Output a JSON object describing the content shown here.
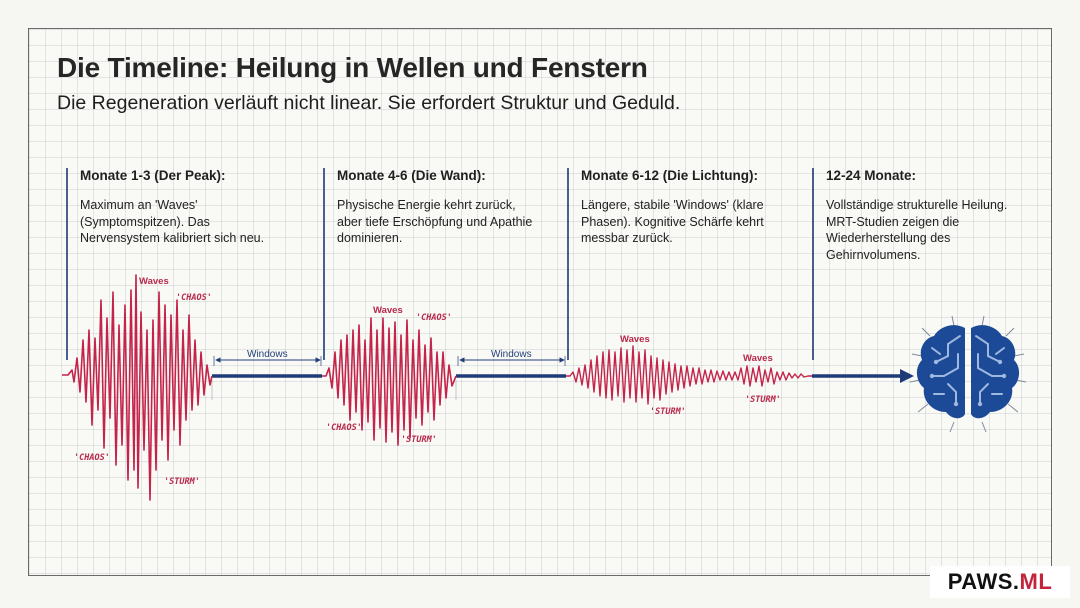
{
  "header": {
    "title": "Die Timeline: Heilung in Wellen und Fenstern",
    "subtitle": "Die Regeneration verläuft nicht linear. Sie erfordert Struktur und Geduld."
  },
  "phases": [
    {
      "heading": "Monate 1-3 (Der Peak):",
      "text": "Maximum an 'Waves' (Symptomspitzen). Das Nervensystem kalibriert sich neu."
    },
    {
      "heading": "Monate 4-6 (Die Wand):",
      "text": "Physische Energie kehrt zurück, aber tiefe Erschöpfung und Apathie dominieren."
    },
    {
      "heading": "Monate 6-12 (Die Lichtung):",
      "text": "Längere, stabile 'Windows' (klare Phasen). Kognitive Schärfe kehrt messbar zurück."
    },
    {
      "heading": "12-24 Monate:",
      "text": "Vollständige strukturelle Heilung. MRT-Studien zeigen die Wiederherstellung des Gehirnvolumens."
    }
  ],
  "labels": {
    "waves": "Waves",
    "chaos": "'CHAOS'",
    "sturm": "'STURM'",
    "windows": "Windows"
  },
  "logo": {
    "main": "PAWS.",
    "accent": "ML"
  },
  "colors": {
    "wave": "#c4234a",
    "timeline": "#1e3a78",
    "brain": "#1c4a96"
  },
  "icons": {
    "brain": "brain-icon"
  }
}
